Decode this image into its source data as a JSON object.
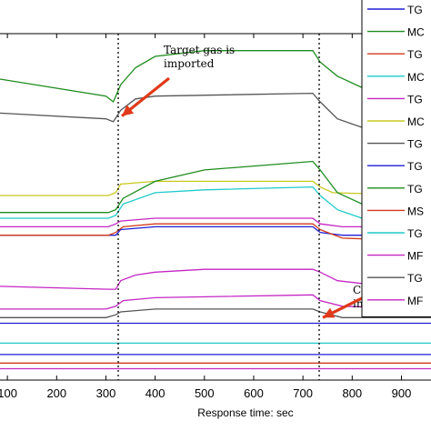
{
  "chart_data": {
    "type": "line",
    "xlabel": "Response time: sec",
    "ylabel": "",
    "title": "",
    "xlim": [
      85,
      960
    ],
    "x_ticks": [
      "100",
      "200",
      "300",
      "400",
      "500",
      "600",
      "700",
      "800",
      "900"
    ],
    "x_tick_values": [
      100,
      200,
      300,
      400,
      500,
      600,
      700,
      800,
      900
    ],
    "grid": false,
    "legend_position": "right",
    "vlines": [
      325,
      733
    ],
    "annotations": [
      {
        "text_lines": [
          "Target gas is",
          "imported"
        ],
        "arrow_to": {
          "x": 325,
          "y": 89
        }
      },
      {
        "text_lines": [
          "Clean air is",
          "imported"
        ],
        "arrow_to": {
          "x": 733,
          "y": 18
        }
      }
    ],
    "series": [
      {
        "name": "TG",
        "color": "#1f1fd6",
        "values": [
          [
            85,
            16
          ],
          [
            960,
            16
          ]
        ]
      },
      {
        "name": "MC",
        "color": "#1e8c1e",
        "values": [
          [
            85,
            102
          ],
          [
            300,
            96
          ],
          [
            315,
            94
          ],
          [
            330,
            100
          ],
          [
            360,
            106
          ],
          [
            400,
            110
          ],
          [
            500,
            112
          ],
          [
            720,
            112
          ],
          [
            735,
            108
          ],
          [
            770,
            103
          ],
          [
            820,
            99
          ],
          [
            960,
            97
          ]
        ]
      },
      {
        "name": "TG",
        "color": "#d13a1a",
        "values": [
          [
            85,
            2
          ],
          [
            960,
            2
          ]
        ]
      },
      {
        "name": "MC",
        "color": "#1fc9c9",
        "values": [
          [
            85,
            9
          ],
          [
            960,
            9
          ]
        ]
      },
      {
        "name": "TG",
        "color": "#c426c4",
        "values": [
          [
            85,
            29
          ],
          [
            305,
            28
          ],
          [
            320,
            28
          ],
          [
            330,
            31
          ],
          [
            360,
            33
          ],
          [
            400,
            34
          ],
          [
            500,
            35
          ],
          [
            720,
            35
          ],
          [
            735,
            34
          ],
          [
            770,
            31
          ],
          [
            820,
            30
          ],
          [
            960,
            29
          ]
        ]
      },
      {
        "name": "MC",
        "color": "#c8c81e",
        "values": [
          [
            85,
            61
          ],
          [
            305,
            61
          ],
          [
            320,
            62
          ],
          [
            330,
            65
          ],
          [
            400,
            66
          ],
          [
            720,
            66
          ],
          [
            735,
            64
          ],
          [
            760,
            62
          ],
          [
            960,
            61
          ]
        ]
      },
      {
        "name": "TG",
        "color": "#555555",
        "values": [
          [
            85,
            90
          ],
          [
            300,
            88
          ],
          [
            315,
            87
          ],
          [
            330,
            91
          ],
          [
            360,
            95
          ],
          [
            400,
            96
          ],
          [
            720,
            97
          ],
          [
            735,
            94
          ],
          [
            770,
            88
          ],
          [
            820,
            85
          ],
          [
            960,
            84
          ]
        ]
      },
      {
        "name": "TG",
        "color": "#1f1fd6",
        "values": [
          [
            85,
            47
          ],
          [
            305,
            47
          ],
          [
            320,
            47
          ],
          [
            330,
            49
          ],
          [
            400,
            50
          ],
          [
            720,
            50
          ],
          [
            735,
            48
          ],
          [
            780,
            47
          ],
          [
            960,
            47
          ]
        ]
      },
      {
        "name": "TG",
        "color": "#1e8c1e",
        "values": [
          [
            85,
            55
          ],
          [
            305,
            55
          ],
          [
            320,
            56
          ],
          [
            335,
            60
          ],
          [
            400,
            66
          ],
          [
            500,
            70
          ],
          [
            720,
            73
          ],
          [
            735,
            70
          ],
          [
            770,
            62
          ],
          [
            820,
            58
          ],
          [
            960,
            57
          ]
        ]
      },
      {
        "name": "MS",
        "color": "#d13a1a",
        "values": [
          [
            85,
            47
          ],
          [
            305,
            47
          ],
          [
            320,
            48
          ],
          [
            335,
            50
          ],
          [
            400,
            51
          ],
          [
            720,
            51
          ],
          [
            735,
            49
          ],
          [
            780,
            46
          ],
          [
            960,
            45
          ]
        ]
      },
      {
        "name": "TG",
        "color": "#1fc9c9",
        "values": [
          [
            85,
            53
          ],
          [
            305,
            53
          ],
          [
            320,
            54
          ],
          [
            335,
            58
          ],
          [
            400,
            62
          ],
          [
            500,
            63
          ],
          [
            720,
            64
          ],
          [
            735,
            61
          ],
          [
            770,
            56
          ],
          [
            820,
            53
          ],
          [
            960,
            52
          ]
        ]
      },
      {
        "name": "MF",
        "color": "#c426c4",
        "values": [
          [
            85,
            50
          ],
          [
            305,
            50
          ],
          [
            320,
            51
          ],
          [
            330,
            52
          ],
          [
            400,
            53
          ],
          [
            720,
            53
          ],
          [
            735,
            51
          ],
          [
            780,
            50
          ],
          [
            960,
            50
          ]
        ]
      },
      {
        "name": "MF",
        "color": "#c426c4",
        "values": [
          [
            85,
            0
          ],
          [
            960,
            0
          ]
        ]
      },
      {
        "name": "TG",
        "color": "#1f1fd6",
        "values": [
          [
            85,
            5
          ],
          [
            960,
            5
          ]
        ]
      },
      {
        "name": "TG",
        "color": "#555555",
        "values": [
          [
            85,
            18
          ],
          [
            300,
            18
          ],
          [
            320,
            19
          ],
          [
            330,
            20
          ],
          [
            400,
            21
          ],
          [
            720,
            21
          ],
          [
            735,
            20
          ],
          [
            780,
            18
          ],
          [
            960,
            18
          ]
        ]
      },
      {
        "name": "MF",
        "color": "#c426c4",
        "values": [
          [
            85,
            21
          ],
          [
            300,
            21
          ],
          [
            320,
            22
          ],
          [
            335,
            24
          ],
          [
            400,
            25
          ],
          [
            720,
            26
          ],
          [
            735,
            24
          ],
          [
            780,
            22
          ],
          [
            960,
            21
          ]
        ]
      }
    ],
    "legend": [
      "TG",
      "MC",
      "TG",
      "MC",
      "TG",
      "MC",
      "TG",
      "TG",
      "TG",
      "MS",
      "TG",
      "MF",
      "TG",
      "MF"
    ],
    "legend_colors": [
      "#1f1fd6",
      "#1e8c1e",
      "#d13a1a",
      "#1fc9c9",
      "#c426c4",
      "#c8c81e",
      "#555555",
      "#1f1fd6",
      "#1e8c1e",
      "#d13a1a",
      "#1fc9c9",
      "#c426c4",
      "#555555",
      "#c426c4"
    ]
  }
}
